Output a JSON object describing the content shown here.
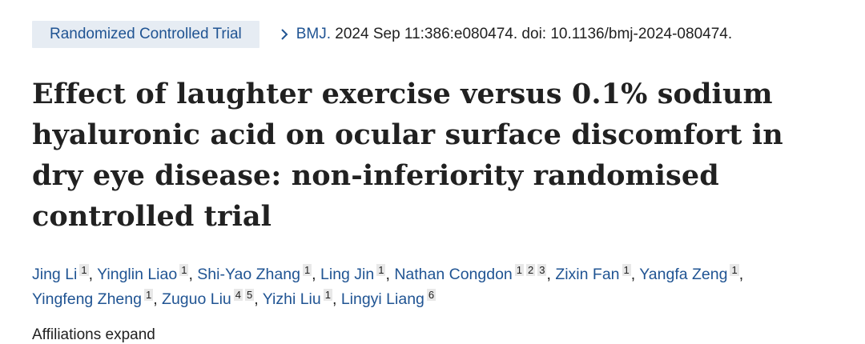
{
  "header": {
    "publication_type": "Randomized Controlled Trial",
    "journal": "BMJ.",
    "citation": "2024 Sep 11:386:e080474. doi: 10.1136/bmj-2024-080474."
  },
  "article": {
    "title": "Effect of laughter exercise versus 0.1% sodium hyaluronic acid on ocular surface discomfort in dry eye disease: non-inferiority randomised controlled trial"
  },
  "authors": [
    {
      "name": "Jing Li",
      "affiliations": [
        "1"
      ]
    },
    {
      "name": "Yinglin Liao",
      "affiliations": [
        "1"
      ]
    },
    {
      "name": "Shi-Yao Zhang",
      "affiliations": [
        "1"
      ]
    },
    {
      "name": "Ling Jin",
      "affiliations": [
        "1"
      ]
    },
    {
      "name": "Nathan Congdon",
      "affiliations": [
        "1",
        "2",
        "3"
      ]
    },
    {
      "name": "Zixin Fan",
      "affiliations": [
        "1"
      ]
    },
    {
      "name": "Yangfa Zeng",
      "affiliations": [
        "1"
      ]
    },
    {
      "name": "Yingfeng Zheng",
      "affiliations": [
        "1"
      ]
    },
    {
      "name": "Zuguo Liu",
      "affiliations": [
        "4",
        "5"
      ]
    },
    {
      "name": "Yizhi Liu",
      "affiliations": [
        "1"
      ]
    },
    {
      "name": "Lingyi Liang",
      "affiliations": [
        "6"
      ]
    }
  ],
  "affiliations_toggle": "Affiliations expand",
  "colors": {
    "link": "#205493",
    "badge_bg": "#e6ecf3",
    "text": "#212121"
  }
}
